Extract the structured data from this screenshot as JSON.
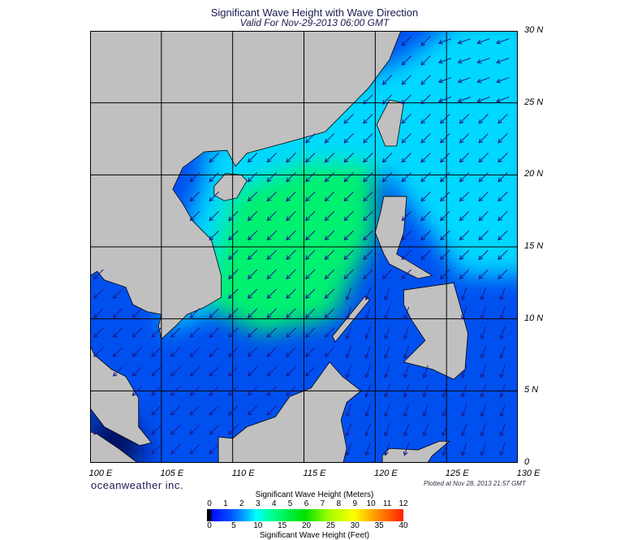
{
  "title": "Significant Wave Height with Wave Direction",
  "subtitle": "Valid For Nov-29-2013 06:00 GMT",
  "map": {
    "region": "South China Sea",
    "lon_range": [
      100,
      130
    ],
    "lat_range": [
      0,
      30
    ],
    "grid_step_deg": 5,
    "lat_labels": [
      "30 N",
      "25 N",
      "20 N",
      "15 N",
      "10 N",
      "5 N",
      "0"
    ],
    "lon_labels": [
      "100 E",
      "105 E",
      "110 E",
      "115 E",
      "120 E",
      "125 E",
      "130 E"
    ],
    "land_color": "#c0c0c0",
    "arrow_color": "#1a1a8a",
    "wave_direction": "northeasterly (arrows point southwest)"
  },
  "brand": "oceanweather inc.",
  "plotted": "Plotted at Nov 28, 2013 21:57 GMT",
  "legend": {
    "title_top": "Significant Wave Height (Meters)",
    "title_bottom": "Significant Wave Height (Feet)",
    "meters": [
      "0",
      "1",
      "2",
      "3",
      "4",
      "5",
      "6",
      "7",
      "8",
      "9",
      "10",
      "11",
      "12"
    ],
    "feet": [
      "0",
      "5",
      "10",
      "15",
      "20",
      "25",
      "30",
      "35",
      "40"
    ]
  }
}
